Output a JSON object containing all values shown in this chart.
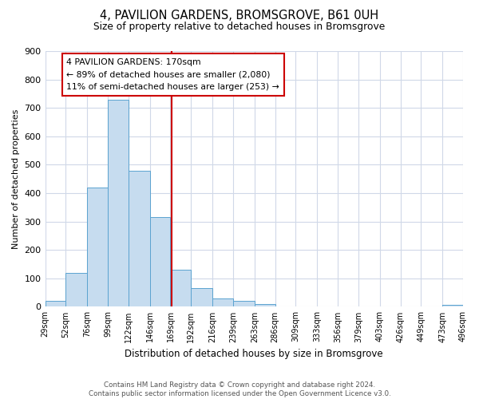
{
  "title": "4, PAVILION GARDENS, BROMSGROVE, B61 0UH",
  "subtitle": "Size of property relative to detached houses in Bromsgrove",
  "xlabel": "Distribution of detached houses by size in Bromsgrove",
  "ylabel": "Number of detached properties",
  "bar_edges": [
    29,
    52,
    76,
    99,
    122,
    146,
    169,
    192,
    216,
    239,
    263,
    286,
    309,
    333,
    356,
    379,
    403,
    426,
    449,
    473,
    496
  ],
  "bar_heights": [
    20,
    120,
    420,
    730,
    480,
    315,
    130,
    65,
    30,
    20,
    10,
    0,
    0,
    0,
    0,
    0,
    0,
    0,
    0,
    8,
    0
  ],
  "bar_color": "#c6dcef",
  "bar_edge_color": "#5ba3d0",
  "vline_x": 170,
  "vline_color": "#cc0000",
  "annotation_title": "4 PAVILION GARDENS: 170sqm",
  "annotation_line1": "← 89% of detached houses are smaller (2,080)",
  "annotation_line2": "11% of semi-detached houses are larger (253) →",
  "annotation_box_color": "#ffffff",
  "annotation_box_edge_color": "#cc0000",
  "ylim": [
    0,
    900
  ],
  "yticks": [
    0,
    100,
    200,
    300,
    400,
    500,
    600,
    700,
    800,
    900
  ],
  "tick_labels": [
    "29sqm",
    "52sqm",
    "76sqm",
    "99sqm",
    "122sqm",
    "146sqm",
    "169sqm",
    "192sqm",
    "216sqm",
    "239sqm",
    "263sqm",
    "286sqm",
    "309sqm",
    "333sqm",
    "356sqm",
    "379sqm",
    "403sqm",
    "426sqm",
    "449sqm",
    "473sqm",
    "496sqm"
  ],
  "footer_line1": "Contains HM Land Registry data © Crown copyright and database right 2024.",
  "footer_line2": "Contains public sector information licensed under the Open Government Licence v3.0.",
  "background_color": "#ffffff",
  "grid_color": "#d0d8e8"
}
